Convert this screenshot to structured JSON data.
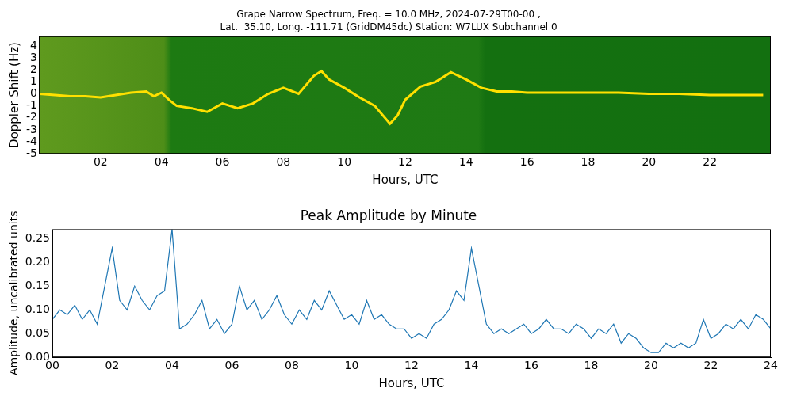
{
  "chart_data": [
    {
      "type": "line",
      "title": "Grape Narrow Spectrum, Freq. = 10.0 MHz, 2024-07-29T00-00 ,",
      "subtitle": "Lat.  35.10, Long. -111.71 (GridDM45dc) Station: W7LUX Subchannel 0",
      "x_label": "Hours, UTC",
      "y_label": "Doppler Shift (Hz)",
      "x": [
        0,
        0.5,
        1,
        1.5,
        2,
        2.5,
        3,
        3.5,
        3.75,
        4,
        4.25,
        4.5,
        5,
        5.5,
        6,
        6.5,
        7,
        7.5,
        8,
        8.5,
        9,
        9.25,
        9.5,
        10,
        10.5,
        11,
        11.5,
        11.75,
        12,
        12.5,
        13,
        13.5,
        14,
        14.5,
        15,
        15.5,
        16,
        17,
        18,
        19,
        20,
        21,
        22,
        23,
        23.75
      ],
      "values": [
        0,
        -0.1,
        -0.2,
        -0.2,
        -0.3,
        -0.1,
        0.1,
        0.2,
        -0.2,
        0.1,
        -0.5,
        -1.0,
        -1.2,
        -1.5,
        -0.8,
        -1.2,
        -0.8,
        0,
        0.5,
        0,
        1.5,
        1.9,
        1.2,
        0.5,
        -0.3,
        -1.0,
        -2.5,
        -1.8,
        -0.5,
        0.6,
        1.0,
        1.8,
        1.2,
        0.5,
        0.2,
        0.2,
        0.1,
        0.1,
        0.1,
        0.1,
        0,
        0,
        -0.1,
        -0.1,
        -0.1
      ],
      "color": "#ffe000",
      "marker": "none",
      "line_style": "solid",
      "xlim": [
        0,
        24
      ],
      "xticks": [
        {
          "value": 2,
          "label": "02"
        },
        {
          "value": 4,
          "label": "04"
        },
        {
          "value": 6,
          "label": "06"
        },
        {
          "value": 8,
          "label": "08"
        },
        10,
        12,
        14,
        16,
        18,
        20,
        22
      ],
      "ylim": [
        -5,
        4.8
      ],
      "yticks": [
        -5,
        -4,
        -3,
        -2,
        -1,
        0,
        1,
        2,
        3,
        4
      ],
      "grid": false
    },
    {
      "type": "line",
      "title": "Peak Amplitude by Minute",
      "x_label": "Hours, UTC",
      "y_label": "Amplitude, uncalibrated units",
      "x": [
        0,
        0.25,
        0.5,
        0.75,
        1,
        1.25,
        1.5,
        1.75,
        2,
        2.25,
        2.5,
        2.75,
        3,
        3.25,
        3.5,
        3.75,
        4,
        4.25,
        4.5,
        4.75,
        5,
        5.25,
        5.5,
        5.75,
        6,
        6.25,
        6.5,
        6.75,
        7,
        7.25,
        7.5,
        7.75,
        8,
        8.25,
        8.5,
        8.75,
        9,
        9.25,
        9.5,
        9.75,
        10,
        10.25,
        10.5,
        10.75,
        11,
        11.25,
        11.5,
        11.75,
        12,
        12.25,
        12.5,
        12.75,
        13,
        13.25,
        13.5,
        13.75,
        14,
        14.25,
        14.5,
        14.75,
        15,
        15.25,
        15.5,
        15.75,
        16,
        16.25,
        16.5,
        16.75,
        17,
        17.25,
        17.5,
        17.75,
        18,
        18.25,
        18.5,
        18.75,
        19,
        19.25,
        19.5,
        19.75,
        20,
        20.25,
        20.5,
        20.75,
        21,
        21.25,
        21.5,
        21.75,
        22,
        22.25,
        22.5,
        22.75,
        23,
        23.25,
        23.5,
        23.75,
        24
      ],
      "values": [
        0.08,
        0.1,
        0.09,
        0.11,
        0.08,
        0.1,
        0.07,
        0.15,
        0.23,
        0.12,
        0.1,
        0.15,
        0.12,
        0.1,
        0.13,
        0.14,
        0.27,
        0.06,
        0.07,
        0.09,
        0.12,
        0.06,
        0.08,
        0.05,
        0.07,
        0.15,
        0.1,
        0.12,
        0.08,
        0.1,
        0.13,
        0.09,
        0.07,
        0.1,
        0.08,
        0.12,
        0.1,
        0.14,
        0.11,
        0.08,
        0.09,
        0.07,
        0.12,
        0.08,
        0.09,
        0.07,
        0.06,
        0.06,
        0.04,
        0.05,
        0.04,
        0.07,
        0.08,
        0.1,
        0.14,
        0.12,
        0.23,
        0.15,
        0.07,
        0.05,
        0.06,
        0.05,
        0.06,
        0.07,
        0.05,
        0.06,
        0.08,
        0.06,
        0.06,
        0.05,
        0.07,
        0.06,
        0.04,
        0.06,
        0.05,
        0.07,
        0.03,
        0.05,
        0.04,
        0.02,
        0.01,
        0.01,
        0.03,
        0.02,
        0.03,
        0.02,
        0.03,
        0.08,
        0.04,
        0.05,
        0.07,
        0.06,
        0.08,
        0.06,
        0.09,
        0.08,
        0.06
      ],
      "color": "#1f77b4",
      "marker": "none",
      "line_style": "solid",
      "xlim": [
        0,
        24
      ],
      "xticks": [
        {
          "value": 0,
          "label": "00"
        },
        {
          "value": 2,
          "label": "02"
        },
        {
          "value": 4,
          "label": "04"
        },
        {
          "value": 6,
          "label": "06"
        },
        {
          "value": 8,
          "label": "08"
        },
        10,
        12,
        14,
        16,
        18,
        20,
        22,
        24
      ],
      "ylim": [
        0,
        0.27
      ],
      "yticks": [
        {
          "value": 0,
          "label": "0.00"
        },
        {
          "value": 0.05,
          "label": "0.05"
        },
        {
          "value": 0.1,
          "label": "0.10"
        },
        {
          "value": 0.15,
          "label": "0.15"
        },
        {
          "value": 0.2,
          "label": "0.20"
        },
        {
          "value": 0.25,
          "label": "0.25"
        }
      ],
      "grid": false
    }
  ]
}
